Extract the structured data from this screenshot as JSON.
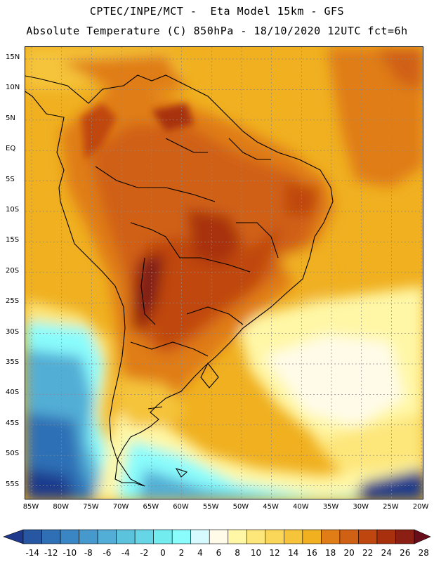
{
  "header": {
    "title_line1": "CPTEC/INPE/MCT -  Eta Model 15km - GFS",
    "title_line2": "Absolute Temperature (C) 850hPa - 18/10/2020 12UTC fct=6h"
  },
  "map": {
    "region": "South America",
    "variable": "Absolute Temperature (C) 850hPa",
    "lat_labels": [
      "15N",
      "10N",
      "5N",
      "EQ",
      "5S",
      "10S",
      "15S",
      "20S",
      "25S",
      "30S",
      "35S",
      "40S",
      "45S",
      "50S",
      "55S"
    ],
    "lon_labels": [
      "85W",
      "80W",
      "75W",
      "70W",
      "65W",
      "60W",
      "55W",
      "50W",
      "45W",
      "40W",
      "35W",
      "30W",
      "25W",
      "20W"
    ],
    "ocean_color": "#f0b020",
    "land_warm_color": "#d86a12",
    "hot_core_color": "#7a1e18"
  },
  "colorbar": {
    "labels": [
      "-14",
      "-12",
      "-10",
      "-8",
      "-6",
      "-4",
      "-2",
      "0",
      "2",
      "4",
      "6",
      "8",
      "10",
      "12",
      "14",
      "16",
      "18",
      "20",
      "22",
      "24",
      "26",
      "28"
    ],
    "colors": [
      "#1f3a8c",
      "#2757a3",
      "#2f6fb5",
      "#3a85c3",
      "#4699cc",
      "#52aed6",
      "#5cc3dd",
      "#66d6e6",
      "#73ecf0",
      "#8afcfc",
      "#d6faff",
      "#fffbe8",
      "#fff7a6",
      "#fde67a",
      "#fad659",
      "#f5c43a",
      "#f0b020",
      "#e07d17",
      "#d06013",
      "#c0460f",
      "#a8300c",
      "#8b1f13",
      "#6a0d1a"
    ]
  }
}
